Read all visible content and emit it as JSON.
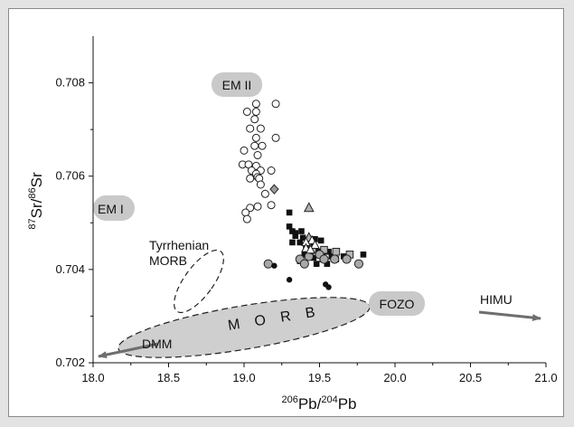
{
  "chart_data": {
    "type": "scatter",
    "xlim": [
      18.0,
      21.0
    ],
    "ylim": [
      0.702,
      0.709
    ],
    "x_ticks": [
      "18.0",
      "18.5",
      "19.0",
      "19.5",
      "20.0",
      "20.5",
      "21.0"
    ],
    "y_ticks": [
      "0.702",
      "0.704",
      "0.706",
      "0.708"
    ],
    "x_tick_values": [
      18.0,
      18.5,
      19.0,
      19.5,
      20.0,
      20.5,
      21.0
    ],
    "y_tick_values": [
      0.702,
      0.704,
      0.706,
      0.708
    ],
    "xlabel": {
      "sup1": "206",
      "base1": "Pb/",
      "sup2": "204",
      "base2": "Pb"
    },
    "ylabel": {
      "sup1": "87",
      "base1": "Sr/",
      "sup2": "86",
      "base2": "Sr"
    },
    "grid": false,
    "regions": {
      "em2": "EM II",
      "em1": "EM I",
      "fozo": "FOZO",
      "himu": "HIMU",
      "dmm": "DMM",
      "morb": "M O R B",
      "tyrrhenian_line1": "Tyrrhenian",
      "tyrrhenian_line2": "MORB"
    },
    "series": [
      {
        "marker": "open-circle",
        "points": [
          [
            19.08,
            0.70755
          ],
          [
            19.21,
            0.70755
          ],
          [
            19.02,
            0.70738
          ],
          [
            19.08,
            0.70738
          ],
          [
            19.07,
            0.70722
          ],
          [
            19.04,
            0.70702
          ],
          [
            19.11,
            0.70702
          ],
          [
            19.08,
            0.70682
          ],
          [
            19.21,
            0.70682
          ],
          [
            19.07,
            0.70665
          ],
          [
            19.12,
            0.70665
          ],
          [
            19.0,
            0.70655
          ],
          [
            19.09,
            0.70645
          ],
          [
            18.99,
            0.70625
          ],
          [
            19.03,
            0.70625
          ],
          [
            19.08,
            0.70622
          ],
          [
            19.05,
            0.70612
          ],
          [
            19.11,
            0.70612
          ],
          [
            19.18,
            0.70612
          ],
          [
            19.08,
            0.70605
          ],
          [
            19.09,
            0.70598
          ],
          [
            19.04,
            0.70595
          ],
          [
            19.1,
            0.70595
          ],
          [
            19.11,
            0.70582
          ],
          [
            19.14,
            0.70562
          ],
          [
            19.18,
            0.70538
          ],
          [
            19.04,
            0.70532
          ],
          [
            19.09,
            0.70535
          ],
          [
            19.01,
            0.70522
          ],
          [
            19.02,
            0.70508
          ]
        ]
      },
      {
        "marker": "filled-square",
        "points": [
          [
            19.3,
            0.70522
          ],
          [
            19.3,
            0.70492
          ],
          [
            19.32,
            0.70482
          ],
          [
            19.34,
            0.70478
          ],
          [
            19.38,
            0.70482
          ],
          [
            19.34,
            0.70472
          ],
          [
            19.39,
            0.70468
          ],
          [
            19.43,
            0.70462
          ],
          [
            19.47,
            0.70465
          ],
          [
            19.51,
            0.70462
          ],
          [
            19.32,
            0.70458
          ],
          [
            19.37,
            0.70458
          ],
          [
            19.41,
            0.70448
          ],
          [
            19.46,
            0.70452
          ],
          [
            19.42,
            0.70442
          ],
          [
            19.49,
            0.70438
          ],
          [
            19.56,
            0.70438
          ],
          [
            19.4,
            0.70432
          ],
          [
            19.44,
            0.70428
          ],
          [
            19.52,
            0.70428
          ],
          [
            19.58,
            0.70428
          ],
          [
            19.66,
            0.70428
          ],
          [
            19.79,
            0.70432
          ],
          [
            19.46,
            0.70425
          ],
          [
            19.52,
            0.70422
          ],
          [
            19.61,
            0.70422
          ],
          [
            19.37,
            0.70418
          ],
          [
            19.48,
            0.70412
          ],
          [
            19.55,
            0.70412
          ]
        ]
      },
      {
        "marker": "gray-square",
        "points": [
          [
            19.53,
            0.70442
          ],
          [
            19.61,
            0.70438
          ],
          [
            19.7,
            0.70432
          ]
        ]
      },
      {
        "marker": "gray-circle",
        "points": [
          [
            19.16,
            0.70412
          ],
          [
            19.37,
            0.70422
          ],
          [
            19.4,
            0.70412
          ],
          [
            19.43,
            0.70428
          ],
          [
            19.45,
            0.70442
          ],
          [
            19.5,
            0.70432
          ],
          [
            19.53,
            0.70422
          ],
          [
            19.6,
            0.70422
          ],
          [
            19.68,
            0.70422
          ],
          [
            19.76,
            0.70412
          ]
        ]
      },
      {
        "marker": "gray-triangle",
        "points": [
          [
            19.43,
            0.70532
          ],
          [
            19.43,
            0.70468
          ]
        ]
      },
      {
        "marker": "open-triangle",
        "points": [
          [
            19.45,
            0.70462
          ],
          [
            19.41,
            0.70458
          ],
          [
            19.47,
            0.70452
          ],
          [
            19.41,
            0.70445
          ],
          [
            19.44,
            0.70442
          ]
        ]
      },
      {
        "marker": "gray-diamond",
        "points": [
          [
            19.2,
            0.70572
          ]
        ]
      },
      {
        "marker": "filled-circle",
        "points": [
          [
            19.2,
            0.70408
          ],
          [
            19.3,
            0.70378
          ],
          [
            19.54,
            0.70368
          ],
          [
            19.56,
            0.70362
          ]
        ]
      }
    ]
  }
}
